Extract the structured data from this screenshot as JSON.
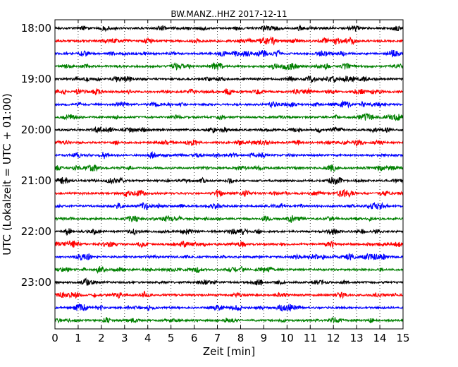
{
  "chart_data": {
    "type": "line",
    "title": "BW.MANZ..HHZ 2017-12-11",
    "xlabel": "Zeit  [min]",
    "ylabel": "UTC (Lokalzeit = UTC + 01:00)",
    "xlim": [
      0,
      15
    ],
    "x_ticks": [
      "0",
      "1",
      "2",
      "3",
      "4",
      "5",
      "6",
      "7",
      "8",
      "9",
      "10",
      "11",
      "12",
      "13",
      "14",
      "15"
    ],
    "y_ticks": [
      "18:00",
      "19:00",
      "20:00",
      "21:00",
      "22:00",
      "23:00"
    ],
    "grid": "vertical dotted at each minute",
    "colors": [
      "#000000",
      "#ff0000",
      "#0000ff",
      "#008000"
    ],
    "traces_start": "18:00",
    "trace_interval_min": 15,
    "trace_count": 24
  }
}
